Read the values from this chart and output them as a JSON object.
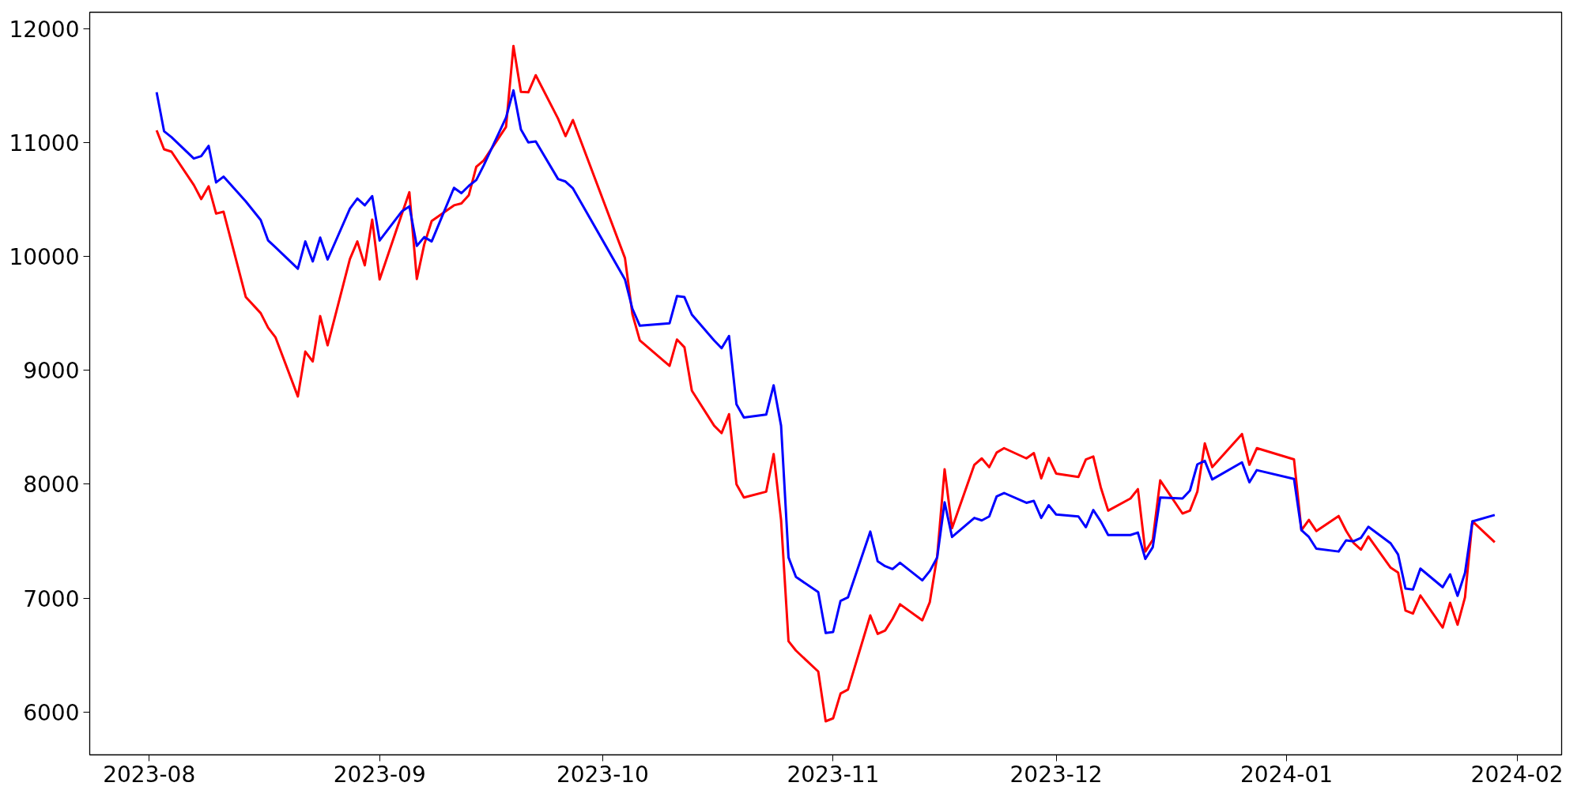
{
  "chart_data": {
    "type": "line",
    "x": [
      "2023-08-02",
      "2023-08-03",
      "2023-08-04",
      "2023-08-07",
      "2023-08-08",
      "2023-08-09",
      "2023-08-10",
      "2023-08-11",
      "2023-08-14",
      "2023-08-16",
      "2023-08-17",
      "2023-08-18",
      "2023-08-21",
      "2023-08-22",
      "2023-08-23",
      "2023-08-24",
      "2023-08-25",
      "2023-08-28",
      "2023-08-29",
      "2023-08-30",
      "2023-08-31",
      "2023-09-01",
      "2023-09-04",
      "2023-09-05",
      "2023-09-06",
      "2023-09-07",
      "2023-09-08",
      "2023-09-11",
      "2023-09-12",
      "2023-09-13",
      "2023-09-14",
      "2023-09-15",
      "2023-09-18",
      "2023-09-19",
      "2023-09-20",
      "2023-09-21",
      "2023-09-22",
      "2023-09-25",
      "2023-09-26",
      "2023-09-27",
      "2023-10-04",
      "2023-10-05",
      "2023-10-06",
      "2023-10-10",
      "2023-10-11",
      "2023-10-12",
      "2023-10-13",
      "2023-10-16",
      "2023-10-17",
      "2023-10-18",
      "2023-10-19",
      "2023-10-20",
      "2023-10-23",
      "2023-10-24",
      "2023-10-25",
      "2023-10-26",
      "2023-10-27",
      "2023-10-30",
      "2023-10-31",
      "2023-11-01",
      "2023-11-02",
      "2023-11-03",
      "2023-11-06",
      "2023-11-07",
      "2023-11-08",
      "2023-11-09",
      "2023-11-10",
      "2023-11-13",
      "2023-11-14",
      "2023-11-15",
      "2023-11-16",
      "2023-11-17",
      "2023-11-20",
      "2023-11-21",
      "2023-11-22",
      "2023-11-23",
      "2023-11-24",
      "2023-11-27",
      "2023-11-28",
      "2023-11-29",
      "2023-11-30",
      "2023-12-01",
      "2023-12-04",
      "2023-12-05",
      "2023-12-06",
      "2023-12-07",
      "2023-12-08",
      "2023-12-11",
      "2023-12-12",
      "2023-12-13",
      "2023-12-14",
      "2023-12-15",
      "2023-12-18",
      "2023-12-19",
      "2023-12-20",
      "2023-12-21",
      "2023-12-22",
      "2023-12-26",
      "2023-12-27",
      "2023-12-28",
      "2024-01-02",
      "2024-01-03",
      "2024-01-04",
      "2024-01-05",
      "2024-01-08",
      "2024-01-09",
      "2024-01-10",
      "2024-01-11",
      "2024-01-12",
      "2024-01-15",
      "2024-01-16",
      "2024-01-17",
      "2024-01-18",
      "2024-01-19",
      "2024-01-22",
      "2024-01-23",
      "2024-01-24",
      "2024-01-25",
      "2024-01-26",
      "2024-01-29"
    ],
    "series": [
      {
        "color": "#ff0000",
        "values": [
          11109,
          10942,
          10921,
          10629,
          10505,
          10617,
          10377,
          10394,
          9644,
          9503,
          9375,
          9289,
          8771,
          9165,
          9079,
          9477,
          9220,
          9978,
          10133,
          9923,
          10325,
          9799,
          10377,
          10565,
          9803,
          10107,
          10312,
          10450,
          10467,
          10540,
          10788,
          10844,
          11139,
          11850,
          11447,
          11443,
          11593,
          11212,
          11058,
          11199,
          9987,
          9494,
          9263,
          9040,
          9272,
          9203,
          8822,
          8514,
          8449,
          8616,
          8000,
          7884,
          7935,
          8265,
          7687,
          6621,
          6539,
          6355,
          5918,
          5944,
          6162,
          6196,
          6848,
          6685,
          6715,
          6818,
          6946,
          6805,
          6963,
          7366,
          8132,
          7614,
          8171,
          8227,
          8150,
          8278,
          8317,
          8227,
          8274,
          8051,
          8231,
          8094,
          8064,
          8218,
          8244,
          7974,
          7768,
          7875,
          7957,
          7409,
          7512,
          8034,
          7743,
          7768,
          7936,
          8359,
          8150,
          8441,
          8171,
          8317,
          8218,
          7597,
          7687,
          7589,
          7721,
          7592,
          7486,
          7426,
          7541,
          7267,
          7225,
          6890,
          6864,
          7023,
          6741,
          6959,
          6766,
          7006,
          7674,
          7490
        ]
      },
      {
        "color": "#0000ff",
        "values": [
          11443,
          11101,
          11049,
          10861,
          10882,
          10972,
          10651,
          10702,
          10484,
          10321,
          10141,
          10081,
          9893,
          10133,
          9957,
          10167,
          9974,
          10420,
          10510,
          10450,
          10531,
          10141,
          10398,
          10441,
          10094,
          10171,
          10133,
          10604,
          10557,
          10621,
          10672,
          10801,
          11220,
          11460,
          11118,
          11002,
          11011,
          10681,
          10659,
          10599,
          9799,
          9542,
          9392,
          9414,
          9653,
          9644,
          9490,
          9263,
          9195,
          9302,
          8702,
          8586,
          8612,
          8869,
          8514,
          7357,
          7186,
          7053,
          6693,
          6702,
          6976,
          7006,
          7584,
          7323,
          7280,
          7255,
          7310,
          7156,
          7237,
          7357,
          7841,
          7537,
          7704,
          7682,
          7717,
          7893,
          7923,
          7837,
          7854,
          7704,
          7816,
          7734,
          7717,
          7623,
          7773,
          7675,
          7554,
          7554,
          7576,
          7344,
          7447,
          7884,
          7875,
          7944,
          8175,
          8205,
          8042,
          8192,
          8017,
          8124,
          8047,
          7597,
          7537,
          7434,
          7409,
          7507,
          7499,
          7529,
          7627,
          7481,
          7383,
          7083,
          7075,
          7259,
          7096,
          7208,
          7019,
          7221,
          7674,
          7730
        ]
      }
    ],
    "xlim": [
      "2023-07-24",
      "2024-02-07"
    ],
    "xticks": [
      "2023-08",
      "2023-09",
      "2023-10",
      "2023-11",
      "2023-12",
      "2024-01",
      "2024-02"
    ],
    "ylim": [
      5623,
      12146
    ],
    "yticks": [
      6000,
      7000,
      8000,
      9000,
      10000,
      11000,
      12000
    ],
    "grid": false,
    "marker": "none",
    "line_style": "solid"
  }
}
